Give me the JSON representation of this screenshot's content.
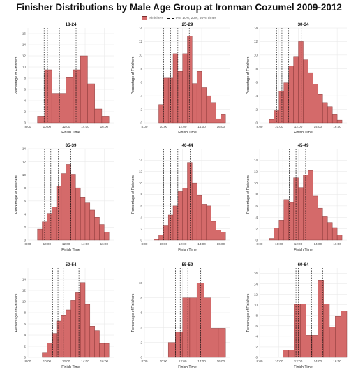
{
  "title": "Finisher Distributions by Male Age Group at Ironman Cozumel 2009-2012",
  "legend": {
    "finishers_label": "Finishers",
    "quantiles_label": "0%, 10%, 20%, 50% Times"
  },
  "colors": {
    "bar_fill": "#d46a6a",
    "bar_stroke": "#7a2e2e",
    "grid": "#e6e6e6",
    "quantile_line": "#111111"
  },
  "axis_text": {
    "xlabel": "Finish Time",
    "ylabel": "Percentage of Finishers",
    "x_ticks": [
      "8:00",
      "10:00",
      "12:00",
      "14:00",
      "16:00"
    ]
  },
  "chart_data": [
    {
      "type": "bar",
      "title": "18-24",
      "x_range_hours": [
        8,
        17
      ],
      "bin_width_hours": 0.75,
      "bin_start_hours": [
        9.0,
        9.75,
        10.5,
        11.25,
        12.0,
        12.75,
        13.5,
        14.25,
        15.0,
        15.75
      ],
      "values": [
        1.2,
        9.5,
        5.3,
        5.3,
        8.1,
        9.5,
        12.0,
        7.0,
        2.5,
        1.2
      ],
      "ylim": [
        0,
        17
      ],
      "y_ticks": [
        0,
        2,
        4,
        6,
        8,
        10,
        12,
        14,
        16
      ],
      "quantile_lines_hours": [
        9.7,
        10.05,
        11.3,
        13.05
      ]
    },
    {
      "type": "bar",
      "title": "25-29",
      "x_range_hours": [
        8,
        17
      ],
      "bin_width_hours": 0.5,
      "bin_start_hours": [
        9.5,
        10.0,
        10.5,
        11.0,
        11.5,
        12.0,
        12.5,
        13.0,
        13.5,
        14.0,
        14.5,
        15.0,
        15.5,
        16.0
      ],
      "values": [
        2.7,
        6.6,
        6.6,
        10.2,
        7.6,
        10.2,
        12.8,
        5.8,
        7.6,
        5.2,
        4.0,
        3.0,
        0.6,
        1.2
      ],
      "ylim": [
        0,
        14
      ],
      "y_ticks": [
        0,
        2,
        4,
        6,
        8,
        10,
        12,
        14
      ],
      "quantile_lines_hours": [
        10.0,
        10.75,
        11.5,
        12.7
      ]
    },
    {
      "type": "bar",
      "title": "30-34",
      "x_range_hours": [
        8,
        17
      ],
      "bin_width_hours": 0.5,
      "bin_start_hours": [
        9.0,
        9.5,
        10.0,
        10.5,
        11.0,
        11.5,
        12.0,
        12.5,
        13.0,
        13.5,
        14.0,
        14.5,
        15.0,
        15.5,
        16.0
      ],
      "values": [
        0.5,
        1.8,
        4.7,
        5.9,
        8.4,
        9.8,
        12.0,
        9.3,
        7.4,
        5.7,
        4.2,
        3.0,
        2.4,
        1.2,
        0.4
      ],
      "ylim": [
        0,
        14
      ],
      "y_ticks": [
        0,
        2,
        4,
        6,
        8,
        10,
        12,
        14
      ],
      "quantile_lines_hours": [
        9.75,
        10.3,
        11.0,
        12.3
      ]
    },
    {
      "type": "bar",
      "title": "35-39",
      "x_range_hours": [
        8,
        17
      ],
      "bin_width_hours": 0.5,
      "bin_start_hours": [
        9.0,
        9.5,
        10.0,
        10.5,
        11.0,
        11.5,
        12.0,
        12.5,
        13.0,
        13.5,
        14.0,
        14.5,
        15.0,
        15.5,
        16.0
      ],
      "values": [
        1.7,
        2.8,
        4.1,
        5.1,
        8.3,
        10.2,
        11.6,
        10.1,
        8.0,
        6.6,
        5.7,
        4.6,
        3.5,
        2.4,
        1.2
      ],
      "ylim": [
        0,
        14
      ],
      "y_ticks": [
        0,
        2,
        4,
        6,
        8,
        10,
        12,
        14
      ],
      "quantile_lines_hours": [
        9.75,
        10.4,
        11.2,
        12.5
      ]
    },
    {
      "type": "bar",
      "title": "40-44",
      "x_range_hours": [
        8,
        17
      ],
      "bin_width_hours": 0.5,
      "bin_start_hours": [
        9.0,
        9.5,
        10.0,
        10.5,
        11.0,
        11.5,
        12.0,
        12.5,
        13.0,
        13.5,
        14.0,
        14.5,
        15.0,
        15.5,
        16.0
      ],
      "values": [
        0.2,
        0.9,
        2.5,
        4.4,
        6.0,
        8.5,
        9.1,
        13.6,
        10.0,
        7.8,
        6.3,
        6.0,
        3.3,
        1.8,
        1.4
      ],
      "ylim": [
        0,
        16
      ],
      "y_ticks": [
        0,
        2,
        4,
        6,
        8,
        10,
        12,
        14
      ],
      "quantile_lines_hours": [
        10.0,
        10.75,
        11.5,
        12.8
      ]
    },
    {
      "type": "bar",
      "title": "45-49",
      "x_range_hours": [
        8,
        17
      ],
      "bin_width_hours": 0.5,
      "bin_start_hours": [
        9.0,
        9.5,
        10.0,
        10.5,
        11.0,
        11.5,
        12.0,
        12.5,
        13.0,
        13.5,
        14.0,
        14.5,
        15.0,
        15.5,
        16.0
      ],
      "values": [
        0.3,
        2.1,
        3.5,
        7.1,
        6.6,
        10.9,
        9.2,
        11.4,
        12.2,
        7.7,
        5.6,
        4.1,
        3.1,
        2.2,
        0.9
      ],
      "ylim": [
        0,
        16
      ],
      "y_ticks": [
        0,
        2,
        4,
        6,
        8,
        10,
        12,
        14
      ],
      "quantile_lines_hours": [
        10.4,
        11.05,
        11.75,
        12.75
      ]
    },
    {
      "type": "bar",
      "title": "50-54",
      "x_range_hours": [
        8,
        17
      ],
      "bin_width_hours": 0.5,
      "bin_start_hours": [
        9.5,
        10.0,
        10.5,
        11.0,
        11.5,
        12.0,
        12.5,
        13.0,
        13.5,
        14.0,
        14.5,
        15.0,
        15.5,
        16.0
      ],
      "values": [
        0.9,
        2.6,
        4.3,
        6.5,
        7.6,
        8.5,
        10.2,
        11.7,
        13.4,
        9.5,
        5.6,
        4.8,
        2.5,
        2.5
      ],
      "ylim": [
        0,
        16
      ],
      "y_ticks": [
        0,
        2,
        4,
        6,
        8,
        10,
        12,
        14
      ],
      "quantile_lines_hours": [
        10.6,
        11.15,
        11.75,
        13.35
      ]
    },
    {
      "type": "bar",
      "title": "55-59",
      "x_range_hours": [
        8,
        17
      ],
      "bin_width_hours": 0.75,
      "bin_start_hours": [
        10.5,
        11.25,
        12.0,
        12.75,
        13.5,
        14.25,
        15.0,
        15.75
      ],
      "values": [
        2.0,
        3.4,
        8.0,
        8.0,
        10.0,
        8.0,
        3.9,
        3.9
      ],
      "ylim": [
        0,
        12
      ],
      "y_ticks": [
        0,
        2,
        4,
        6,
        8,
        10
      ],
      "quantile_lines_hours": [
        11.25,
        11.75,
        12.55,
        13.9
      ]
    },
    {
      "type": "bar",
      "title": "60-64",
      "x_range_hours": [
        8,
        17
      ],
      "bin_width_hours": 0.6,
      "bin_start_hours": [
        10.4,
        11.0,
        11.6,
        12.2,
        12.8,
        13.4,
        14.0,
        14.6,
        15.2,
        15.8,
        16.4
      ],
      "values": [
        1.4,
        1.4,
        10.2,
        10.2,
        4.2,
        4.2,
        14.7,
        10.2,
        5.8,
        7.8,
        8.8
      ],
      "ylim": [
        0,
        17
      ],
      "y_ticks": [
        0,
        2,
        4,
        6,
        8,
        10,
        12,
        14,
        16
      ],
      "quantile_lines_hours": [
        11.75,
        12.0,
        13.35,
        14.5
      ]
    }
  ]
}
